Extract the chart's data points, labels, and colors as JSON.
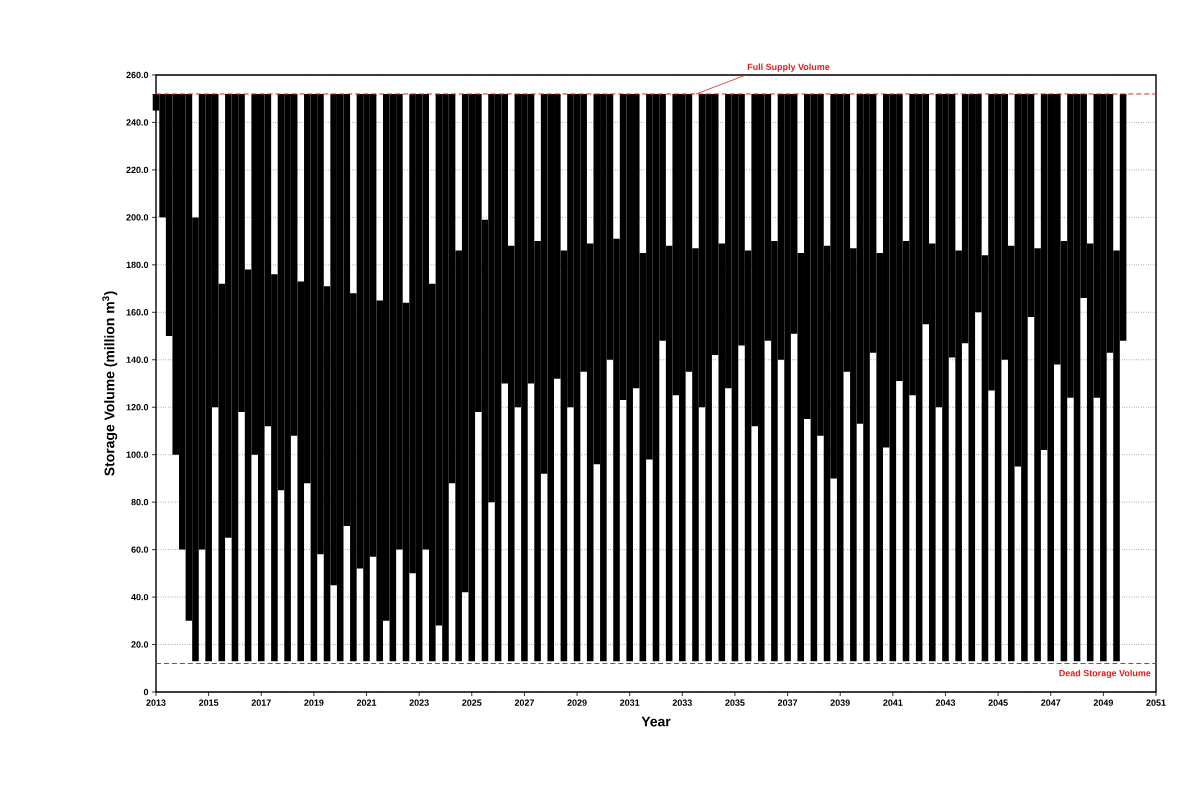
{
  "chart_data": {
    "type": "bar",
    "xlabel": "Year",
    "ylabel": "Storage Volume (million m$^{3}$)",
    "xlim": [
      2013,
      2051
    ],
    "xticks": [
      2013,
      2015,
      2017,
      2019,
      2021,
      2023,
      2025,
      2027,
      2029,
      2031,
      2033,
      2035,
      2037,
      2039,
      2041,
      2043,
      2045,
      2047,
      2049,
      2051
    ],
    "ylim": [
      0,
      260
    ],
    "yticks": [
      0,
      {
        "value": 20,
        "label": "20.0"
      },
      {
        "value": 40,
        "label": "40.0"
      },
      {
        "value": 60,
        "label": "60.0"
      },
      {
        "value": 80,
        "label": "80.0"
      },
      {
        "value": 100,
        "label": "100.0"
      },
      {
        "value": 120,
        "label": "120.0"
      },
      {
        "value": 140,
        "label": "140.0"
      },
      {
        "value": 160,
        "label": "160.0"
      },
      {
        "value": 180,
        "label": "180.0"
      },
      {
        "value": 200,
        "label": "200.0"
      },
      {
        "value": 220,
        "label": "220.0"
      },
      {
        "value": 240,
        "label": "240.0"
      },
      {
        "value": 260,
        "label": "260.0"
      }
    ],
    "grid": "y",
    "ref_lines": [
      {
        "axis": "y",
        "value": 252,
        "label": "Full Supply Volume",
        "color": "#e02020",
        "line_style": "dashed"
      },
      {
        "axis": "y",
        "value": 12,
        "label": "Dead Storage Volume",
        "color": "#e02020",
        "line_style": "dashed"
      }
    ],
    "series": [
      {
        "color": "#000000",
        "x": [
          2013,
          2013.25,
          2013.5,
          2013.75,
          2014,
          2014.25,
          2014.5,
          2014.75,
          2015,
          2015.25,
          2015.5,
          2015.75,
          2016,
          2016.25,
          2016.5,
          2016.75,
          2017,
          2017.25,
          2017.5,
          2017.75,
          2018,
          2018.25,
          2018.5,
          2018.75,
          2019,
          2019.25,
          2019.5,
          2019.75,
          2020,
          2020.25,
          2020.5,
          2020.75,
          2021,
          2021.25,
          2021.5,
          2021.75,
          2022,
          2022.25,
          2022.5,
          2022.75,
          2023,
          2023.25,
          2023.5,
          2023.75,
          2024,
          2024.25,
          2024.5,
          2024.75,
          2025,
          2025.25,
          2025.5,
          2025.75,
          2026,
          2026.25,
          2026.5,
          2026.75,
          2027,
          2027.25,
          2027.5,
          2027.75,
          2028,
          2028.25,
          2028.5,
          2028.75,
          2029,
          2029.25,
          2029.5,
          2029.75,
          2030,
          2030.25,
          2030.5,
          2030.75,
          2031,
          2031.25,
          2031.5,
          2031.75,
          2032,
          2032.25,
          2032.5,
          2032.75,
          2033,
          2033.25,
          2033.5,
          2033.75,
          2034,
          2034.25,
          2034.5,
          2034.75,
          2035,
          2035.25,
          2035.5,
          2035.75,
          2036,
          2036.25,
          2036.5,
          2036.75,
          2037,
          2037.25,
          2037.5,
          2037.75,
          2038,
          2038.25,
          2038.5,
          2038.75,
          2039,
          2039.25,
          2039.5,
          2039.75,
          2040,
          2040.25,
          2040.5,
          2040.75,
          2041,
          2041.25,
          2041.5,
          2041.75,
          2042,
          2042.25,
          2042.5,
          2042.75,
          2043,
          2043.25,
          2043.5,
          2043.75,
          2044,
          2044.25,
          2044.5,
          2044.75,
          2045,
          2045.25,
          2045.5,
          2045.75,
          2046,
          2046.25,
          2046.5,
          2046.75,
          2047,
          2047.25,
          2047.5,
          2047.75,
          2048,
          2048.25,
          2048.5,
          2048.75,
          2049,
          2049.25,
          2049.5,
          2049.75
        ],
        "base": [
          245,
          200,
          150,
          100,
          60,
          30,
          13,
          60,
          13,
          120,
          13,
          65,
          13,
          118,
          13,
          100,
          13,
          112,
          13,
          85,
          13,
          108,
          13,
          88,
          13,
          58,
          13,
          45,
          13,
          70,
          13,
          52,
          13,
          57,
          13,
          30,
          13,
          60,
          13,
          50,
          13,
          60,
          13,
          28,
          13,
          88,
          13,
          42,
          13,
          118,
          13,
          80,
          13,
          130,
          13,
          120,
          13,
          130,
          13,
          92,
          13,
          132,
          13,
          120,
          13,
          135,
          13,
          96,
          13,
          140,
          13,
          123,
          13,
          128,
          13,
          98,
          13,
          148,
          13,
          125,
          13,
          135,
          13,
          120,
          13,
          142,
          13,
          128,
          13,
          146,
          13,
          112,
          13,
          148,
          13,
          140,
          13,
          151,
          13,
          115,
          13,
          108,
          13,
          90,
          13,
          135,
          13,
          113,
          13,
          143,
          13,
          103,
          13,
          131,
          13,
          125,
          13,
          155,
          13,
          120,
          13,
          141,
          13,
          147,
          13,
          160,
          13,
          127,
          13,
          140,
          13,
          95,
          13,
          158,
          13,
          102,
          13,
          138,
          13,
          124,
          13,
          166,
          13,
          124,
          13,
          143,
          13,
          148
        ],
        "values": [
          7,
          52,
          102,
          152,
          192,
          222,
          187,
          192,
          239,
          132,
          159,
          187,
          239,
          134,
          165,
          152,
          239,
          140,
          163,
          167,
          239,
          144,
          160,
          164,
          239,
          194,
          158,
          207,
          239,
          182,
          155,
          200,
          239,
          195,
          152,
          222,
          239,
          192,
          151,
          202,
          239,
          192,
          159,
          224,
          239,
          164,
          173,
          210,
          239,
          134,
          186,
          172,
          239,
          122,
          175,
          132,
          239,
          122,
          177,
          160,
          239,
          120,
          173,
          132,
          239,
          117,
          176,
          156,
          239,
          112,
          178,
          129,
          239,
          124,
          172,
          154,
          239,
          104,
          175,
          127,
          239,
          117,
          174,
          132,
          239,
          110,
          176,
          124,
          239,
          106,
          173,
          140,
          239,
          104,
          177,
          112,
          239,
          101,
          172,
          137,
          239,
          144,
          175,
          162,
          239,
          117,
          174,
          139,
          239,
          109,
          172,
          149,
          239,
          121,
          177,
          127,
          239,
          97,
          176,
          132,
          239,
          111,
          173,
          105,
          239,
          92,
          171,
          125,
          239,
          112,
          175,
          157,
          239,
          94,
          174,
          150,
          239,
          114,
          177,
          128,
          239,
          86,
          176,
          128,
          239,
          109,
          173,
          104
        ]
      }
    ]
  }
}
